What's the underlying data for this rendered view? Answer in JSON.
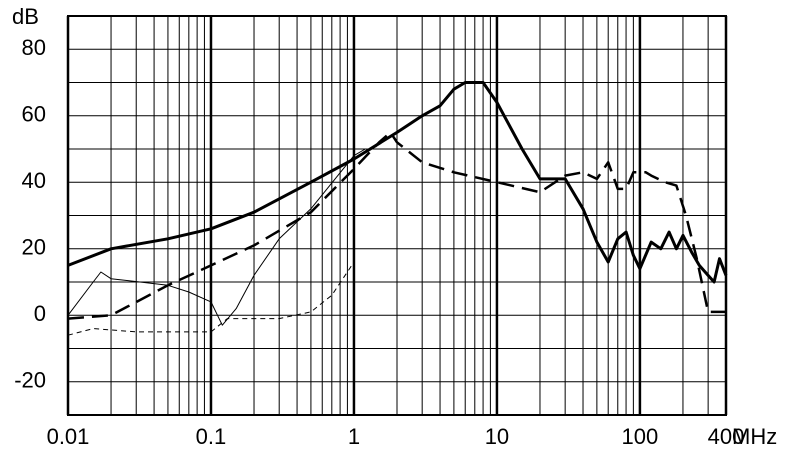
{
  "chart_data": {
    "type": "line",
    "y_label": "dB",
    "x_label": "MHz",
    "log_x": true,
    "grid": true,
    "xlim": [
      0.01,
      400
    ],
    "ylim": [
      -30,
      90
    ],
    "xticks": [
      0.01,
      0.1,
      1,
      10,
      100,
      400
    ],
    "yticks": [
      -20,
      0,
      20,
      40,
      60,
      80
    ],
    "minor_xticks": [
      0.02,
      0.03,
      0.04,
      0.05,
      0.06,
      0.07,
      0.08,
      0.09,
      0.2,
      0.3,
      0.4,
      0.5,
      0.6,
      0.7,
      0.8,
      0.9,
      2,
      3,
      4,
      5,
      6,
      7,
      8,
      9,
      20,
      30,
      40,
      50,
      60,
      70,
      80,
      90,
      200,
      300
    ],
    "minor_yticks": [
      -30,
      -10,
      10,
      30,
      50,
      70,
      90
    ],
    "series": [
      {
        "color": "#000",
        "style": "solid",
        "width": 3,
        "x": [
          0.01,
          0.02,
          0.05,
          0.1,
          0.2,
          0.5,
          1,
          2,
          3,
          4,
          5,
          6,
          8,
          10,
          15,
          20,
          30,
          40,
          50,
          60,
          70,
          80,
          90,
          100,
          120,
          140,
          160,
          180,
          200,
          230,
          260,
          300,
          330,
          360,
          400
        ],
        "values": [
          15,
          20,
          23,
          26,
          31,
          40,
          47,
          55,
          60,
          63,
          68,
          70,
          70,
          64,
          50,
          41,
          41,
          32,
          22,
          16,
          23,
          25,
          18,
          14,
          22,
          20,
          25,
          20,
          24,
          19,
          15,
          12,
          10,
          17,
          12
        ]
      },
      {
        "color": "#000",
        "style": "dashed",
        "width": 2.5,
        "x": [
          0.01,
          0.02,
          0.05,
          0.1,
          0.2,
          0.5,
          1,
          1.5,
          1.8,
          2,
          3,
          5,
          10,
          20,
          30,
          40,
          50,
          60,
          70,
          80,
          90,
          110,
          120,
          150,
          180,
          210,
          250,
          300,
          400
        ],
        "values": [
          -1,
          0,
          9,
          15,
          21,
          31,
          44,
          52,
          55,
          52,
          46,
          43,
          40,
          37,
          42,
          43,
          41,
          46,
          38,
          38,
          43,
          43,
          42,
          40,
          39,
          30,
          17,
          1,
          1
        ]
      },
      {
        "color": "#000",
        "style": "solid",
        "width": 1,
        "x": [
          0.01,
          0.015,
          0.017,
          0.02,
          0.05,
          0.07,
          0.1,
          0.12,
          0.15,
          0.2,
          0.3,
          0.5,
          1,
          1.2
        ],
        "values": [
          0,
          10,
          13,
          11,
          9,
          7,
          4,
          -3,
          2,
          12,
          23,
          32,
          48,
          50
        ]
      },
      {
        "color": "#000",
        "style": "dashed",
        "width": 1,
        "x": [
          0.01,
          0.015,
          0.03,
          0.1,
          0.13,
          0.3,
          0.5,
          0.7,
          1
        ],
        "values": [
          -6,
          -4,
          -5,
          -5,
          -1,
          -1,
          1,
          6,
          16
        ]
      }
    ]
  }
}
